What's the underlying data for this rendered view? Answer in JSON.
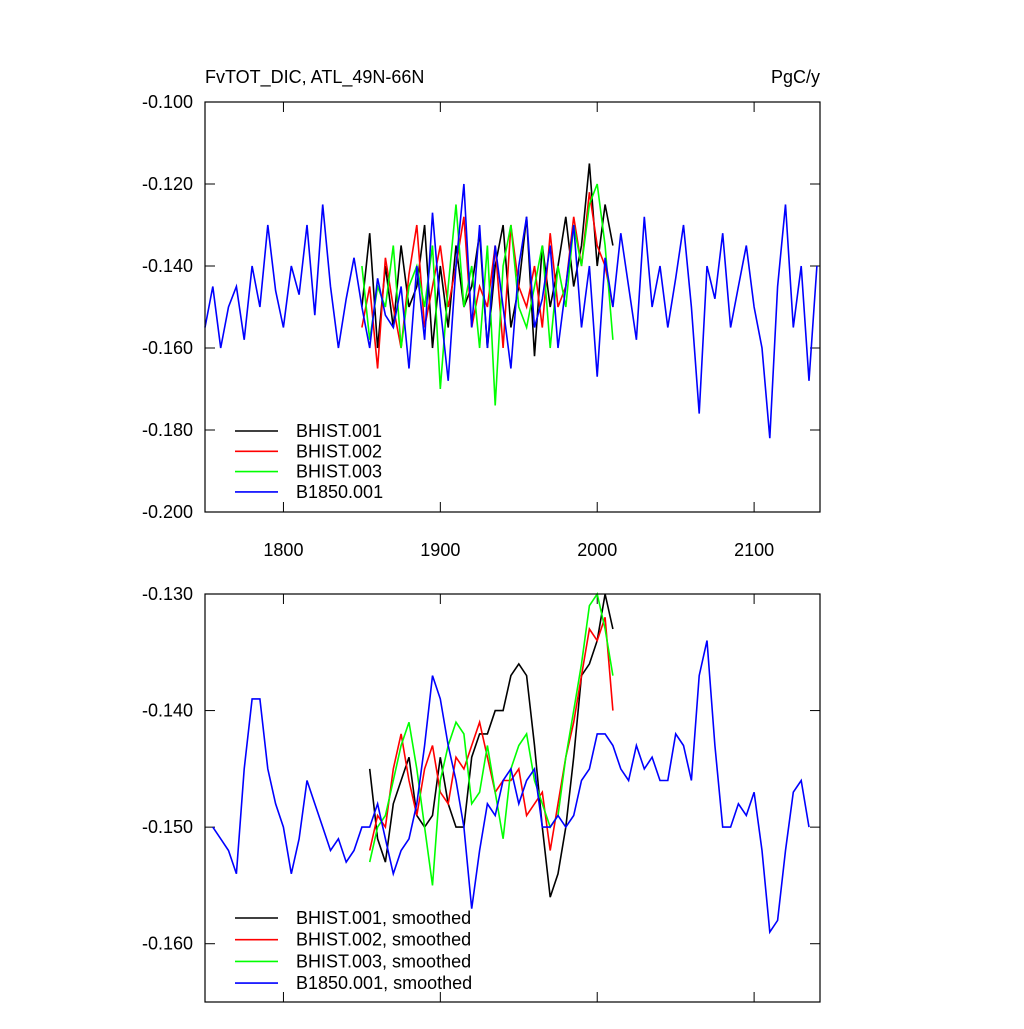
{
  "chart_data": [
    {
      "type": "line",
      "title": "FvTOT_DIC, ATL_49N-66N",
      "subtitle": "PgC/y",
      "x": [
        1750,
        1755,
        1760,
        1765,
        1770,
        1775,
        1780,
        1785,
        1790,
        1795,
        1800,
        1805,
        1810,
        1815,
        1820,
        1825,
        1830,
        1835,
        1840,
        1845,
        1850,
        1855,
        1860,
        1865,
        1870,
        1875,
        1880,
        1885,
        1890,
        1895,
        1900,
        1905,
        1910,
        1915,
        1920,
        1925,
        1930,
        1935,
        1940,
        1945,
        1950,
        1955,
        1960,
        1965,
        1970,
        1975,
        1980,
        1985,
        1990,
        1995,
        2000,
        2005,
        2010,
        2015,
        2020,
        2025,
        2030,
        2035,
        2040,
        2045,
        2050,
        2055,
        2060,
        2065,
        2070,
        2075,
        2080,
        2085,
        2090,
        2095,
        2100,
        2105,
        2110,
        2115,
        2120,
        2125,
        2130,
        2135,
        2140
      ],
      "xlim": [
        1750,
        2142
      ],
      "xticks": [
        1800,
        1900,
        2000,
        2100
      ],
      "ylim": [
        -0.2,
        -0.1
      ],
      "yticks": [
        {
          "value": -0.2,
          "label": "-0.200"
        },
        {
          "value": -0.18,
          "label": "-0.180"
        },
        {
          "value": -0.16,
          "label": "-0.160"
        },
        {
          "value": -0.14,
          "label": "-0.140"
        },
        {
          "value": -0.12,
          "label": "-0.120"
        },
        {
          "value": -0.1,
          "label": "-0.100"
        }
      ],
      "legend": "lower left",
      "series": [
        {
          "name": "BHIST.001",
          "color": "#000000",
          "values": [
            null,
            null,
            null,
            null,
            null,
            null,
            null,
            null,
            null,
            null,
            null,
            null,
            null,
            null,
            null,
            null,
            null,
            null,
            null,
            null,
            -0.15,
            -0.132,
            -0.16,
            -0.14,
            -0.155,
            -0.135,
            -0.15,
            -0.145,
            -0.13,
            -0.16,
            -0.14,
            -0.155,
            -0.135,
            -0.15,
            -0.145,
            -0.132,
            -0.16,
            -0.14,
            -0.13,
            -0.155,
            -0.145,
            -0.128,
            -0.162,
            -0.135,
            -0.15,
            -0.14,
            -0.128,
            -0.145,
            -0.135,
            -0.115,
            -0.14,
            -0.125,
            -0.135,
            null,
            null,
            null,
            null,
            null,
            null,
            null,
            null,
            null,
            null,
            null,
            null,
            null,
            null,
            null,
            null,
            null,
            null,
            null,
            null,
            null,
            null,
            null,
            null,
            null,
            null
          ]
        },
        {
          "name": "BHIST.002",
          "color": "#ff0000",
          "values": [
            null,
            null,
            null,
            null,
            null,
            null,
            null,
            null,
            null,
            null,
            null,
            null,
            null,
            null,
            null,
            null,
            null,
            null,
            null,
            null,
            -0.155,
            -0.145,
            -0.165,
            -0.138,
            -0.15,
            -0.16,
            -0.142,
            -0.13,
            -0.155,
            -0.145,
            -0.135,
            -0.15,
            -0.14,
            -0.128,
            -0.155,
            -0.145,
            -0.15,
            -0.135,
            -0.16,
            -0.13,
            -0.145,
            -0.15,
            -0.14,
            -0.155,
            -0.132,
            -0.15,
            -0.145,
            -0.128,
            -0.14,
            -0.122,
            -0.135,
            -0.14,
            -0.15,
            null,
            null,
            null,
            null,
            null,
            null,
            null,
            null,
            null,
            null,
            null,
            null,
            null,
            null,
            null,
            null,
            null,
            null,
            null,
            null,
            null,
            null,
            null,
            null,
            null,
            null
          ]
        },
        {
          "name": "BHIST.003",
          "color": "#00ff00",
          "values": [
            null,
            null,
            null,
            null,
            null,
            null,
            null,
            null,
            null,
            null,
            null,
            null,
            null,
            null,
            null,
            null,
            null,
            null,
            null,
            null,
            -0.14,
            -0.158,
            -0.145,
            -0.15,
            -0.135,
            -0.16,
            -0.145,
            -0.14,
            -0.15,
            -0.135,
            -0.17,
            -0.145,
            -0.125,
            -0.15,
            -0.14,
            -0.16,
            -0.135,
            -0.174,
            -0.14,
            -0.13,
            -0.15,
            -0.155,
            -0.145,
            -0.135,
            -0.16,
            -0.14,
            -0.15,
            -0.13,
            -0.14,
            -0.125,
            -0.12,
            -0.135,
            -0.158,
            null,
            null,
            null,
            null,
            null,
            null,
            null,
            null,
            null,
            null,
            null,
            null,
            null,
            null,
            null,
            null,
            null,
            null,
            null,
            null,
            null,
            null,
            null,
            null,
            null,
            null
          ]
        },
        {
          "name": "B1850.001",
          "color": "#0000ff",
          "values": [
            -0.155,
            -0.145,
            -0.16,
            -0.15,
            -0.145,
            -0.158,
            -0.14,
            -0.15,
            -0.13,
            -0.146,
            -0.155,
            -0.14,
            -0.147,
            -0.13,
            -0.152,
            -0.125,
            -0.145,
            -0.16,
            -0.148,
            -0.138,
            -0.15,
            -0.16,
            -0.143,
            -0.152,
            -0.155,
            -0.145,
            -0.165,
            -0.14,
            -0.158,
            -0.127,
            -0.15,
            -0.168,
            -0.14,
            -0.12,
            -0.155,
            -0.13,
            -0.16,
            -0.135,
            -0.15,
            -0.165,
            -0.14,
            -0.128,
            -0.155,
            -0.148,
            -0.135,
            -0.16,
            -0.145,
            -0.13,
            -0.155,
            -0.14,
            -0.167,
            -0.138,
            -0.15,
            -0.132,
            -0.145,
            -0.158,
            -0.128,
            -0.15,
            -0.14,
            -0.155,
            -0.143,
            -0.13,
            -0.15,
            -0.176,
            -0.14,
            -0.148,
            -0.132,
            -0.155,
            -0.145,
            -0.135,
            -0.15,
            -0.16,
            -0.182,
            -0.145,
            -0.125,
            -0.155,
            -0.14,
            -0.168,
            -0.14
          ]
        }
      ]
    },
    {
      "type": "line",
      "x": [
        1755,
        1760,
        1765,
        1770,
        1775,
        1780,
        1785,
        1790,
        1795,
        1800,
        1805,
        1810,
        1815,
        1820,
        1825,
        1830,
        1835,
        1840,
        1845,
        1850,
        1855,
        1860,
        1865,
        1870,
        1875,
        1880,
        1885,
        1890,
        1895,
        1900,
        1905,
        1910,
        1915,
        1920,
        1925,
        1930,
        1935,
        1940,
        1945,
        1950,
        1955,
        1960,
        1965,
        1970,
        1975,
        1980,
        1985,
        1990,
        1995,
        2000,
        2005,
        2010,
        2015,
        2020,
        2025,
        2030,
        2035,
        2040,
        2045,
        2050,
        2055,
        2060,
        2065,
        2070,
        2075,
        2080,
        2085,
        2090,
        2095,
        2100,
        2105,
        2110,
        2115,
        2120,
        2125,
        2130,
        2135
      ],
      "xlim": [
        1750,
        2142
      ],
      "xticks": [
        1800,
        1900,
        2000,
        2100
      ],
      "ylim": [
        -0.165,
        -0.13
      ],
      "yticks": [
        {
          "value": -0.16,
          "label": "-0.160"
        },
        {
          "value": -0.15,
          "label": "-0.150"
        },
        {
          "value": -0.14,
          "label": "-0.140"
        },
        {
          "value": -0.13,
          "label": "-0.130"
        }
      ],
      "legend": "lower left",
      "series": [
        {
          "name": "BHIST.001, smoothed",
          "color": "#000000",
          "values": [
            null,
            null,
            null,
            null,
            null,
            null,
            null,
            null,
            null,
            null,
            null,
            null,
            null,
            null,
            null,
            null,
            null,
            null,
            null,
            null,
            -0.145,
            -0.151,
            -0.153,
            -0.148,
            -0.146,
            -0.144,
            -0.149,
            -0.15,
            -0.149,
            -0.144,
            -0.148,
            -0.15,
            -0.15,
            -0.144,
            -0.142,
            -0.142,
            -0.14,
            -0.14,
            -0.137,
            -0.136,
            -0.137,
            -0.143,
            -0.15,
            -0.156,
            -0.154,
            -0.15,
            -0.144,
            -0.137,
            -0.136,
            -0.134,
            -0.13,
            -0.133,
            null,
            null,
            null,
            null,
            null,
            null,
            null,
            null,
            null,
            null,
            null,
            null,
            null,
            null,
            null,
            null,
            null,
            null,
            null,
            null,
            null,
            null,
            null,
            null,
            null
          ]
        },
        {
          "name": "BHIST.002, smoothed",
          "color": "#ff0000",
          "values": [
            null,
            null,
            null,
            null,
            null,
            null,
            null,
            null,
            null,
            null,
            null,
            null,
            null,
            null,
            null,
            null,
            null,
            null,
            null,
            null,
            -0.152,
            -0.149,
            -0.15,
            -0.145,
            -0.142,
            -0.146,
            -0.149,
            -0.145,
            -0.143,
            -0.147,
            -0.148,
            -0.144,
            -0.145,
            -0.143,
            -0.141,
            -0.144,
            -0.147,
            -0.146,
            -0.146,
            -0.145,
            -0.149,
            -0.148,
            -0.147,
            -0.152,
            -0.148,
            -0.144,
            -0.141,
            -0.137,
            -0.133,
            -0.134,
            -0.132,
            -0.14,
            null,
            null,
            null,
            null,
            null,
            null,
            null,
            null,
            null,
            null,
            null,
            null,
            null,
            null,
            null,
            null,
            null,
            null,
            null,
            null,
            null,
            null,
            null,
            null,
            null
          ]
        },
        {
          "name": "BHIST.003, smoothed",
          "color": "#00ff00",
          "values": [
            null,
            null,
            null,
            null,
            null,
            null,
            null,
            null,
            null,
            null,
            null,
            null,
            null,
            null,
            null,
            null,
            null,
            null,
            null,
            null,
            -0.153,
            -0.15,
            -0.149,
            -0.146,
            -0.143,
            -0.141,
            -0.145,
            -0.15,
            -0.155,
            -0.146,
            -0.143,
            -0.141,
            -0.142,
            -0.148,
            -0.147,
            -0.143,
            -0.147,
            -0.151,
            -0.145,
            -0.143,
            -0.142,
            -0.146,
            -0.148,
            -0.15,
            -0.149,
            -0.144,
            -0.14,
            -0.136,
            -0.131,
            -0.13,
            -0.133,
            -0.137,
            null,
            null,
            null,
            null,
            null,
            null,
            null,
            null,
            null,
            null,
            null,
            null,
            null,
            null,
            null,
            null,
            null,
            null,
            null,
            null,
            null,
            null,
            null,
            null,
            null
          ]
        },
        {
          "name": "B1850.001, smoothed",
          "color": "#0000ff",
          "values": [
            -0.15,
            -0.151,
            -0.152,
            -0.154,
            -0.145,
            -0.139,
            -0.139,
            -0.145,
            -0.148,
            -0.15,
            -0.154,
            -0.151,
            -0.146,
            -0.148,
            -0.15,
            -0.152,
            -0.151,
            -0.153,
            -0.152,
            -0.15,
            -0.15,
            -0.148,
            -0.151,
            -0.154,
            -0.152,
            -0.151,
            -0.148,
            -0.143,
            -0.137,
            -0.139,
            -0.143,
            -0.146,
            -0.15,
            -0.157,
            -0.152,
            -0.148,
            -0.149,
            -0.146,
            -0.145,
            -0.148,
            -0.146,
            -0.145,
            -0.15,
            -0.15,
            -0.149,
            -0.15,
            -0.149,
            -0.146,
            -0.145,
            -0.142,
            -0.142,
            -0.143,
            -0.145,
            -0.146,
            -0.143,
            -0.145,
            -0.144,
            -0.146,
            -0.146,
            -0.142,
            -0.143,
            -0.146,
            -0.137,
            -0.134,
            -0.143,
            -0.15,
            -0.15,
            -0.148,
            -0.149,
            -0.147,
            -0.152,
            -0.159,
            -0.158,
            -0.152,
            -0.147,
            -0.146,
            -0.15
          ]
        }
      ]
    }
  ]
}
